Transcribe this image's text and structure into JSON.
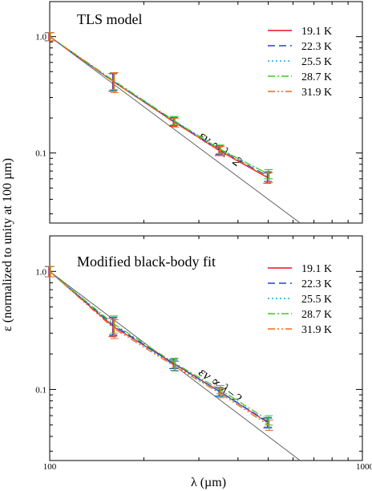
{
  "figure": {
    "ylabel": "ε (normalized to unity at 100 µm)",
    "xlabel": "λ (µm)",
    "x_ticks": [
      "100",
      "1000"
    ]
  },
  "chart_data": [
    {
      "type": "line",
      "title": "TLS model",
      "xscale": "log",
      "yscale": "log",
      "xlim": [
        100,
        1000
      ],
      "ylim": [
        0.025,
        2.0
      ],
      "y_ticks": [
        1.0,
        0.1
      ],
      "y_tick_labels": [
        "1.0",
        "0.1"
      ],
      "legend_position": "top-right",
      "x": [
        100,
        160,
        250,
        350,
        500
      ],
      "series": [
        {
          "name": "19.1 K",
          "color": "#e8141e",
          "dash": "",
          "values": [
            1.0,
            0.41,
            0.185,
            0.104,
            0.061
          ],
          "errors": [
            0.08,
            0.07,
            0.015,
            0.009,
            0.006
          ]
        },
        {
          "name": "22.3 K",
          "color": "#2442d6",
          "dash": "9,5",
          "values": [
            1.0,
            0.41,
            0.187,
            0.106,
            0.063
          ],
          "errors": [
            0.08,
            0.07,
            0.015,
            0.009,
            0.006
          ]
        },
        {
          "name": "25.5 K",
          "color": "#17a8e0",
          "dash": "2,3",
          "values": [
            1.0,
            0.415,
            0.19,
            0.108,
            0.066
          ],
          "errors": [
            0.08,
            0.07,
            0.016,
            0.009,
            0.006
          ]
        },
        {
          "name": "28.7 K",
          "color": "#3fcc1e",
          "dash": "9,3,2,3",
          "values": [
            1.0,
            0.42,
            0.19,
            0.108,
            0.066
          ],
          "errors": [
            0.08,
            0.07,
            0.016,
            0.009,
            0.006
          ]
        },
        {
          "name": "31.9 K",
          "color": "#f06a1a",
          "dash": "9,3,2,3,2,3",
          "values": [
            1.0,
            0.41,
            0.183,
            0.105,
            0.062
          ],
          "errors": [
            0.08,
            0.08,
            0.016,
            0.009,
            0.006
          ]
        }
      ],
      "reference_line": {
        "label": "εν ∝ λ−2",
        "slope": -2
      }
    },
    {
      "type": "line",
      "title": "Modified black-body fit",
      "xscale": "log",
      "yscale": "log",
      "xlim": [
        100,
        1000
      ],
      "ylim": [
        0.025,
        2.0
      ],
      "y_ticks": [
        1.0,
        0.1
      ],
      "y_tick_labels": [
        "1.0",
        "0.1"
      ],
      "legend_position": "top-right",
      "x": [
        100,
        160,
        250,
        350,
        500
      ],
      "series": [
        {
          "name": "19.1 K",
          "color": "#e8141e",
          "dash": "",
          "values": [
            1.0,
            0.34,
            0.165,
            0.096,
            0.052
          ],
          "errors": [
            0.1,
            0.06,
            0.015,
            0.008,
            0.005
          ]
        },
        {
          "name": "22.3 K",
          "color": "#2442d6",
          "dash": "9,5",
          "values": [
            1.0,
            0.35,
            0.165,
            0.096,
            0.053
          ],
          "errors": [
            0.1,
            0.06,
            0.015,
            0.008,
            0.005
          ]
        },
        {
          "name": "25.5 K",
          "color": "#17a8e0",
          "dash": "2,3",
          "values": [
            1.0,
            0.345,
            0.16,
            0.095,
            0.052
          ],
          "errors": [
            0.1,
            0.06,
            0.015,
            0.008,
            0.005
          ]
        },
        {
          "name": "28.7 K",
          "color": "#3fcc1e",
          "dash": "9,3,2,3",
          "values": [
            1.0,
            0.36,
            0.168,
            0.1,
            0.055
          ],
          "errors": [
            0.1,
            0.06,
            0.016,
            0.008,
            0.005
          ]
        },
        {
          "name": "31.9 K",
          "color": "#f06a1a",
          "dash": "9,3,2,3,2,3",
          "values": [
            1.0,
            0.33,
            0.158,
            0.093,
            0.05
          ],
          "errors": [
            0.1,
            0.06,
            0.015,
            0.008,
            0.005
          ]
        }
      ],
      "reference_line": {
        "label": "εν ∝ λ−2",
        "slope": -2
      }
    }
  ]
}
